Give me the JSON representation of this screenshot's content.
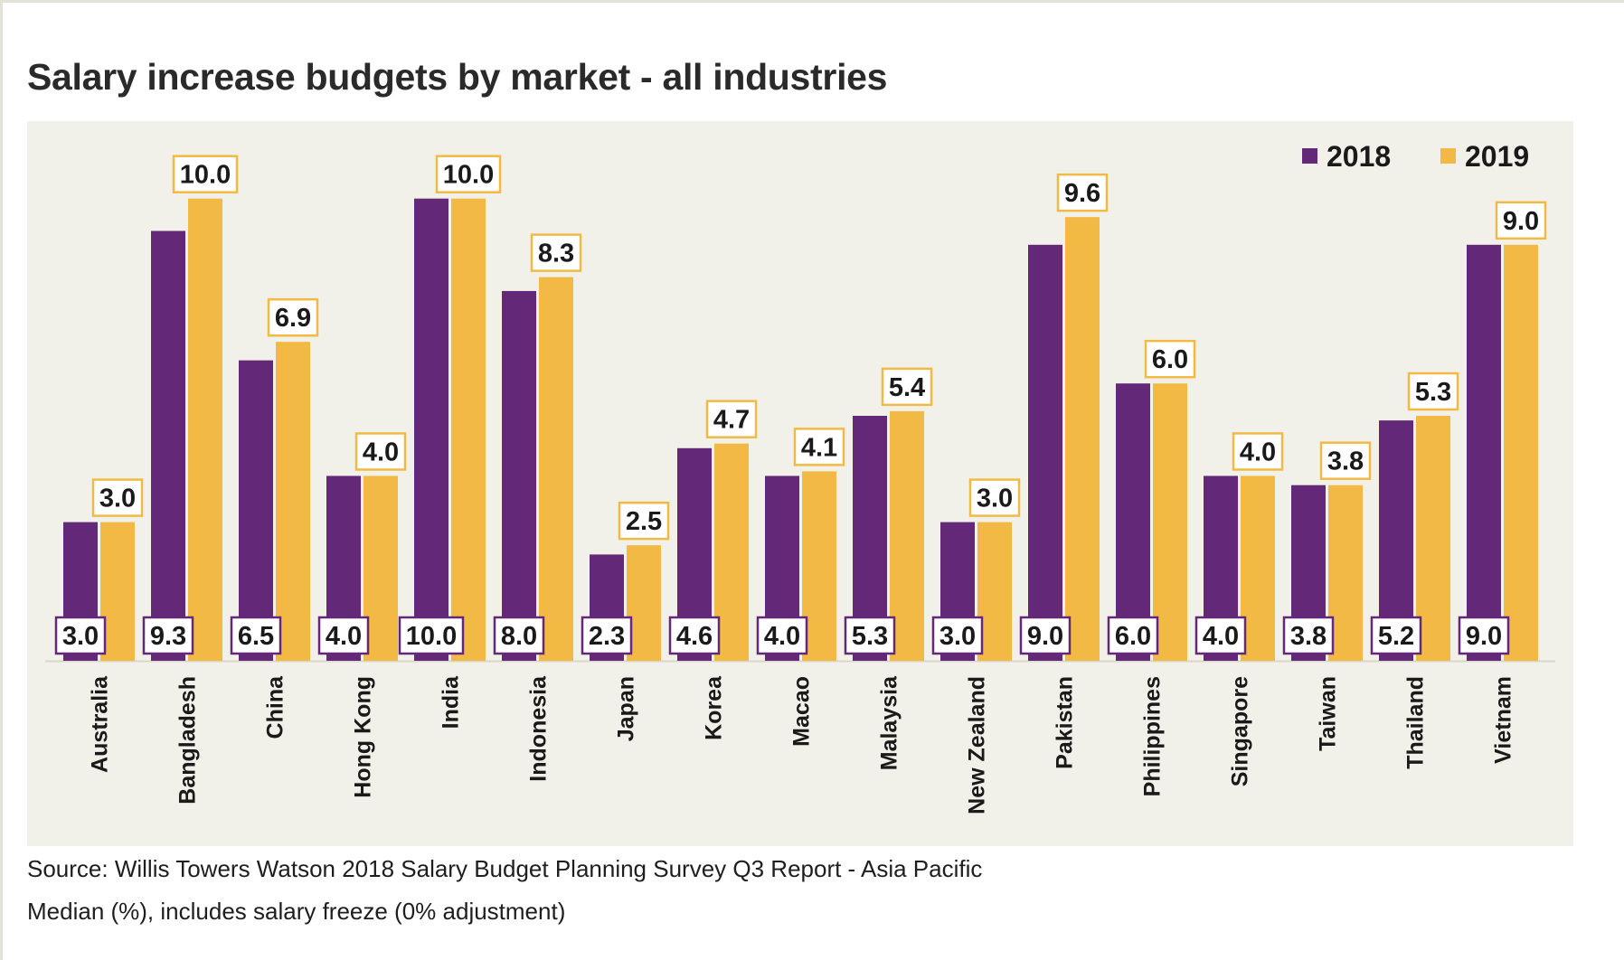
{
  "title": "Salary increase budgets by market - all industries",
  "source": "Source: Willis Towers Watson 2018 Salary Budget Planning Survey Q3 Report - Asia Pacific",
  "note": "Median (%), includes salary freeze (0% adjustment)",
  "colors": {
    "series_2018": "#642878",
    "series_2019": "#f2ba45",
    "panel": "#f2f1e9",
    "text": "#1a1a1a"
  },
  "chart_data": {
    "type": "bar",
    "title": "Salary increase budgets by market - all industries",
    "xlabel": "",
    "ylabel": "",
    "ylim": [
      0,
      10.6
    ],
    "grid": false,
    "legend": "top-right",
    "categories": [
      "Australia",
      "Bangladesh",
      "China",
      "Hong Kong",
      "India",
      "Indonesia",
      "Japan",
      "Korea",
      "Macao",
      "Malaysia",
      "New Zealand",
      "Pakistan",
      "Philippines",
      "Singapore",
      "Taiwan",
      "Thailand",
      "Vietnam"
    ],
    "series": [
      {
        "name": "2018",
        "values": [
          3.0,
          9.3,
          6.5,
          4.0,
          10.0,
          8.0,
          2.3,
          4.6,
          4.0,
          5.3,
          3.0,
          9.0,
          6.0,
          4.0,
          3.8,
          5.2,
          9.0
        ],
        "labels": [
          "3.0",
          "9.3",
          "6.5",
          "4.0",
          "10.0",
          "8.0",
          "2.3",
          "4.6",
          "4.0",
          "5.3",
          "3.0",
          "9.0",
          "6.0",
          "4.0",
          "3.8",
          "5.2",
          "9.0"
        ]
      },
      {
        "name": "2019",
        "values": [
          3.0,
          10.0,
          6.9,
          4.0,
          10.0,
          8.3,
          2.5,
          4.7,
          4.1,
          5.4,
          3.0,
          9.6,
          6.0,
          4.0,
          3.8,
          5.3,
          9.0
        ],
        "labels": [
          "3.0",
          "10.0",
          "6.9",
          "4.0",
          "10.0",
          "8.3",
          "2.5",
          "4.7",
          "4.1",
          "5.4",
          "3.0",
          "9.6",
          "6.0",
          "4.0",
          "3.8",
          "5.3",
          "9.0"
        ]
      }
    ]
  }
}
